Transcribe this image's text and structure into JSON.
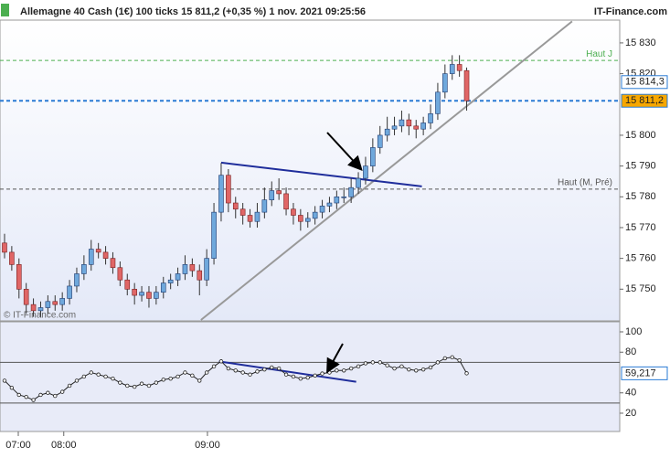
{
  "header": {
    "title": "Allemagne 40 Cash (1€) 100 ticks 15 811,2 (+0,35 %) 1 nov. 2021 09:25:56",
    "brand": "IT-Finance.com",
    "watermark": "© IT-Finance.com"
  },
  "chart_data": [
    {
      "type": "candlestick",
      "xlim": [
        -0.63,
        85.2
      ],
      "ylim": [
        15739.7,
        15837.4
      ],
      "yticks": [
        {
          "value": 15750,
          "label": "15 750"
        },
        {
          "value": 15760,
          "label": "15 760"
        },
        {
          "value": 15770,
          "label": "15 770"
        },
        {
          "value": 15780,
          "label": "15 780"
        },
        {
          "value": 15790,
          "label": "15 790"
        },
        {
          "value": 15800,
          "label": "15 800"
        },
        {
          "value": 15820,
          "label": "15 820"
        },
        {
          "value": 15830,
          "label": "15 830"
        }
      ],
      "up_color": "#6fa8dc",
      "down_color": "#e06666",
      "open": [
        15765,
        15762,
        15758,
        15750,
        15745,
        15743,
        15744,
        15746,
        15745,
        15747,
        15751,
        15755,
        15758,
        15763,
        15762,
        15760,
        15757,
        15753,
        15750,
        15748,
        15749,
        15747,
        15749,
        15752,
        15753,
        15755,
        15758,
        15756,
        15753,
        15760,
        15775,
        15787,
        15778,
        15776,
        15774,
        15772,
        15775,
        15779,
        15782,
        15781,
        15776,
        15774,
        15772,
        15773,
        15775,
        15777,
        15778,
        15780,
        15780,
        15783,
        15786,
        15790,
        15796,
        15800,
        15802,
        15803,
        15805,
        15803,
        15802,
        15804,
        15807,
        15814,
        15820,
        15823,
        15821
      ],
      "high": [
        15768,
        15764,
        15760,
        15752,
        15747,
        15746,
        15748,
        15748,
        15749,
        15753,
        15757,
        15761,
        15766,
        15765,
        15764,
        15762,
        15759,
        15755,
        15752,
        15751,
        15751,
        15751,
        15754,
        15755,
        15757,
        15761,
        15760,
        15758,
        15763,
        15778,
        15791,
        15789,
        15780,
        15778,
        15776,
        15778,
        15783,
        15785,
        15786,
        15783,
        15778,
        15776,
        15775,
        15777,
        15779,
        15780,
        15782,
        15783,
        15786,
        15788,
        15793,
        15799,
        15803,
        15806,
        15806,
        15808,
        15807,
        15805,
        15806,
        15810,
        15817,
        15823,
        15826,
        15826,
        15822
      ],
      "low": [
        15760,
        15756,
        15747,
        15742,
        15741,
        15741,
        15742,
        15743,
        15743,
        15745,
        15749,
        15753,
        15756,
        15760,
        15758,
        15755,
        15751,
        15748,
        15745,
        15746,
        15744,
        15745,
        15747,
        15750,
        15751,
        15753,
        15754,
        15748,
        15751,
        15758,
        15772,
        15775,
        15773,
        15771,
        15770,
        15770,
        15773,
        15777,
        15779,
        15774,
        15771,
        15769,
        15770,
        15771,
        15773,
        15775,
        15776,
        15778,
        15778,
        15781,
        15784,
        15788,
        15794,
        15798,
        15800,
        15801,
        15800,
        15799,
        15800,
        15802,
        15805,
        15812,
        15818,
        15819,
        15808
      ],
      "close": [
        15762,
        15758,
        15750,
        15745,
        15743,
        15744,
        15746,
        15745,
        15747,
        15751,
        15755,
        15758,
        15763,
        15762,
        15760,
        15757,
        15753,
        15750,
        15748,
        15749,
        15747,
        15749,
        15752,
        15753,
        15755,
        15758,
        15756,
        15753,
        15760,
        15775,
        15787,
        15778,
        15776,
        15774,
        15772,
        15775,
        15779,
        15782,
        15781,
        15776,
        15774,
        15772,
        15773,
        15775,
        15777,
        15778,
        15780,
        15780,
        15783,
        15786,
        15790,
        15796,
        15800,
        15802,
        15803,
        15805,
        15803,
        15802,
        15804,
        15807,
        15814,
        15820,
        15823,
        15821,
        15811.2
      ],
      "levels": [
        {
          "value": 15824.3,
          "label": "Haut J",
          "color": "#4caf50"
        },
        {
          "value": 15782.5,
          "label": "Haut (M, Pré)",
          "color": "#555555"
        },
        {
          "value": 15811.2,
          "color": "#2a7bd4"
        }
      ],
      "annotations": [
        {
          "value": 15814.3,
          "label": "15 814,3",
          "color": "#ffffff"
        },
        {
          "value": 15811.2,
          "label": "15 811,2",
          "color": "#f7a700"
        }
      ],
      "trendlines": [
        {
          "x": [
            27.2,
            78.6
          ],
          "y": [
            15740,
            15837
          ],
          "color": "#999999"
        },
        {
          "x": [
            30,
            57.8
          ],
          "y": [
            15791.1,
            15783.4
          ],
          "color": "#1f2d9b"
        }
      ]
    },
    {
      "type": "line",
      "xlim": [
        -0.63,
        85.2
      ],
      "ylim": [
        2,
        109.9
      ],
      "yticks": [
        20,
        40,
        80,
        100
      ],
      "color": "#222222",
      "values": [
        52,
        45,
        38,
        36,
        33,
        38,
        40,
        37,
        41,
        47,
        52,
        56,
        60,
        58,
        56,
        54,
        50,
        47,
        46,
        49,
        47,
        50,
        53,
        54,
        56,
        60,
        57,
        52,
        60,
        66,
        71,
        64,
        62,
        60,
        58,
        61,
        63,
        65,
        64,
        58,
        56,
        54,
        55,
        57,
        59,
        60,
        62,
        62,
        64,
        66,
        69,
        70,
        70,
        67,
        64,
        66,
        63,
        62,
        63,
        65,
        70,
        74,
        75,
        72,
        59.217
      ],
      "levels": [
        {
          "value": 70,
          "color": "#555555"
        },
        {
          "value": 30,
          "color": "#555555"
        }
      ],
      "annotations": [
        {
          "value": 59.217,
          "label": "59,217",
          "color": "#ffffff"
        }
      ],
      "trendlines": [
        {
          "x": [
            29.7,
            48.7
          ],
          "y": [
            70.9,
            50.9
          ],
          "color": "#1f2d9b"
        }
      ],
      "xticks": [
        {
          "value": 1.9,
          "label": "07:00"
        },
        {
          "value": 8.2,
          "label": "08:00"
        },
        {
          "value": 28.1,
          "label": "09:00"
        }
      ]
    }
  ]
}
